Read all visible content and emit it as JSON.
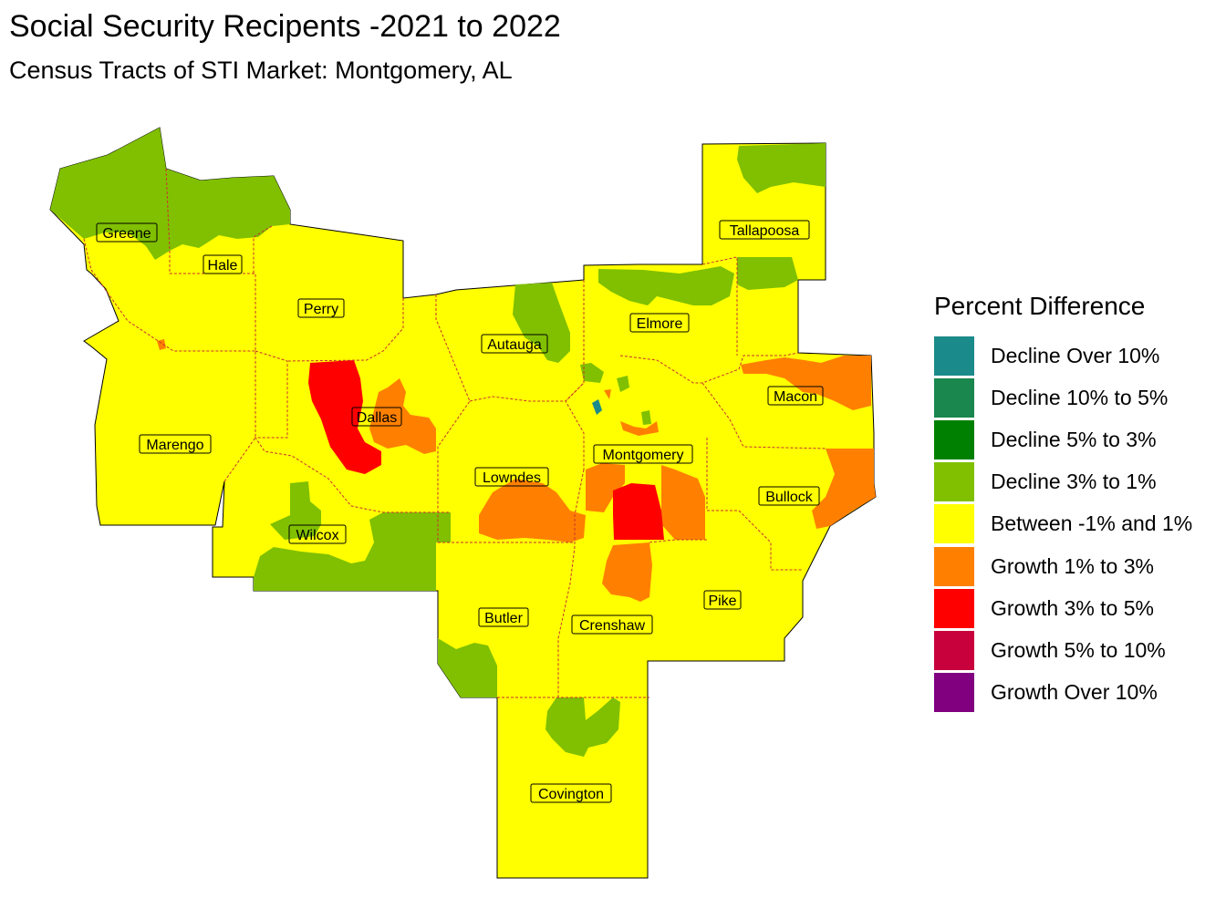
{
  "title": "Social Security Recipents -2021 to 2022",
  "subtitle": "Census Tracts of STI Market: Montgomery, AL",
  "colors": {
    "decline_over_10": "#1b8a8a",
    "decline_10_5": "#19874e",
    "decline_5_3": "#008000",
    "decline_3_1": "#80c000",
    "between": "#ffff00",
    "growth_1_3": "#ff8000",
    "growth_3_5": "#ff0000",
    "growth_5_10": "#c8003c",
    "growth_over_10": "#800080",
    "boundary": "#c83232"
  },
  "legend": {
    "title": "Percent Difference",
    "items": [
      {
        "label": "Decline Over 10%",
        "color": "#1b8a8a"
      },
      {
        "label": "Decline 10% to 5%",
        "color": "#19874e"
      },
      {
        "label": "Decline 5% to 3%",
        "color": "#008000"
      },
      {
        "label": "Decline 3% to 1%",
        "color": "#80c000"
      },
      {
        "label": "Between -1% and 1%",
        "color": "#ffff00"
      },
      {
        "label": "Growth 1% to 3%",
        "color": "#ff8000"
      },
      {
        "label": "Growth 3% to 5%",
        "color": "#ff0000"
      },
      {
        "label": "Growth 5% to 10%",
        "color": "#c8003c"
      },
      {
        "label": "Growth Over 10%",
        "color": "#800080"
      }
    ]
  },
  "counties": [
    "Greene",
    "Hale",
    "Perry",
    "Marengo",
    "Dallas",
    "Wilcox",
    "Autauga",
    "Lowndes",
    "Butler",
    "Elmore",
    "Montgomery",
    "Crenshaw",
    "Covington",
    "Tallapoosa",
    "Macon",
    "Bullock",
    "Pike"
  ]
}
